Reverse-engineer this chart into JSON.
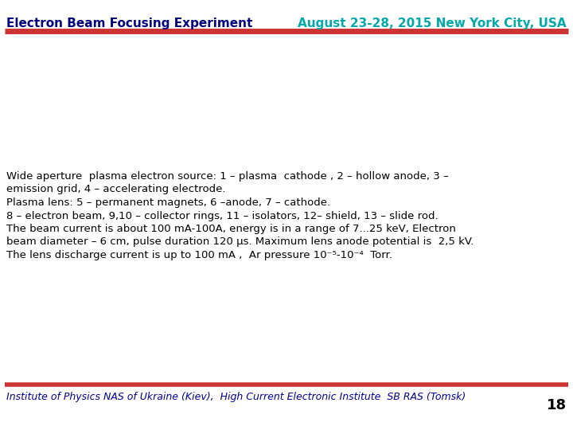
{
  "title_left": "Electron Beam Focusing Experiment",
  "title_right": "August 23-28, 2015 New York City, USA",
  "title_left_color": "#000080",
  "title_right_color": "#00AAAA",
  "separator_color": "#CC3333",
  "bg_color": "#FFFFFF",
  "body_text_lines": [
    "Wide aperture  plasma electron source: 1 – plasma  cathode , 2 – hollow anode, 3 –",
    "emission grid, 4 – accelerating electrode.",
    "Plasma lens: 5 – permanent magnets, 6 –anode, 7 – cathode.",
    "8 – electron beam, 9,10 – collector rings, 11 – isolators, 12– shield, 13 – slide rod.",
    "The beam current is about 100 mA-100A, energy is in a range of 7...25 keV, Electron",
    "beam diameter – 6 cm, pulse duration 120 μs. Maximum lens anode potential is  2,5 kV.",
    "The lens discharge current is up to 100 mA ,  Ar pressure 10⁻⁵-10⁻⁴  Torr."
  ],
  "footer_text": "Institute of Physics NAS of Ukraine (Kiev),  High Current Electronic Institute  SB RAS (Tomsk)",
  "footer_color": "#000099",
  "page_number": "18",
  "page_number_color": "#000000",
  "body_text_color": "#000000",
  "title_fontsize": 11,
  "body_fontsize": 9.5,
  "footer_fontsize": 9
}
